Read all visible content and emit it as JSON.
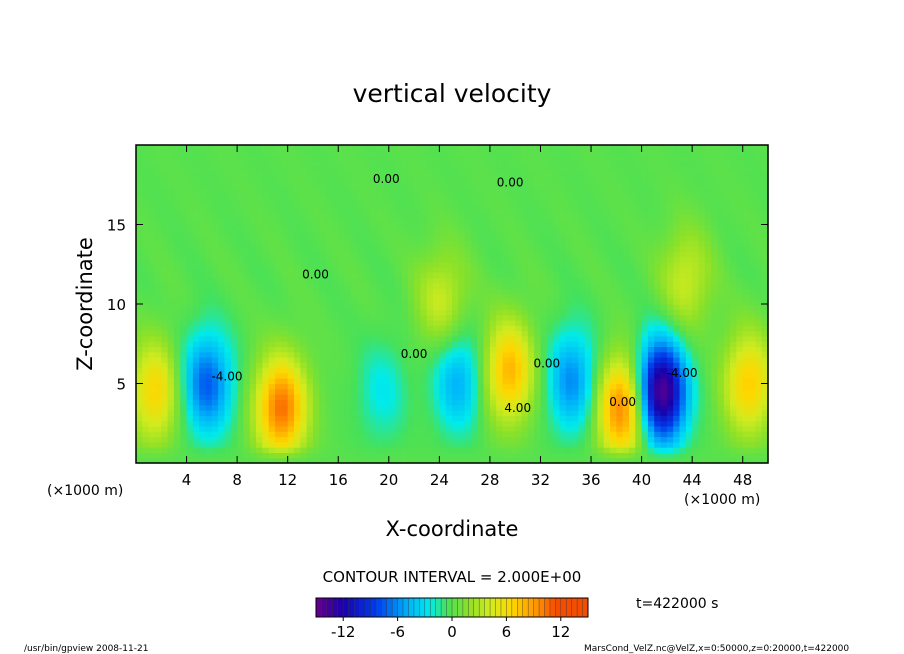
{
  "chart_data": {
    "type": "heatmap",
    "title": "vertical velocity",
    "xlabel": "X-coordinate",
    "ylabel": "Z-coordinate",
    "x_unit_left": "(×1000 m)",
    "x_unit_right": "(×1000 m)",
    "xlim": [
      0,
      50
    ],
    "ylim": [
      0,
      20
    ],
    "x_ticks": [
      4,
      8,
      12,
      16,
      20,
      24,
      28,
      32,
      36,
      40,
      44,
      48
    ],
    "y_ticks": [
      5,
      10,
      15
    ],
    "contour_interval_text": "CONTOUR INTERVAL = 2.000E+00",
    "contour_labels": [
      {
        "text": "0.00",
        "x": 14.2,
        "y": 11.6
      },
      {
        "text": "0.00",
        "x": 22.0,
        "y": 6.6
      },
      {
        "text": "0.00",
        "x": 32.5,
        "y": 6.0
      },
      {
        "text": "-4.00",
        "x": 7.2,
        "y": 5.2
      },
      {
        "text": "4.00",
        "x": 30.2,
        "y": 3.2
      },
      {
        "text": "0.00",
        "x": 38.5,
        "y": 3.6
      },
      {
        "text": "-4.00",
        "x": 43.2,
        "y": 5.4
      },
      {
        "text": "0.00",
        "x": 19.8,
        "y": 17.6
      },
      {
        "text": "0.00",
        "x": 29.6,
        "y": 17.4
      }
    ],
    "features": [
      {
        "x": 1.5,
        "z": 4.5,
        "w": 6.5
      },
      {
        "x": 5.6,
        "z": 5.0,
        "w": -7.5
      },
      {
        "x": 11.5,
        "z": 3.5,
        "w": 10.5
      },
      {
        "x": 19.5,
        "z": 4.5,
        "w": -2.5
      },
      {
        "x": 25.5,
        "z": 5.2,
        "w": -5.0
      },
      {
        "x": 29.5,
        "z": 5.8,
        "w": 8.0
      },
      {
        "x": 34.5,
        "z": 5.2,
        "w": -6.0
      },
      {
        "x": 38.5,
        "z": 3.5,
        "w": 10.5
      },
      {
        "x": 41.5,
        "z": 4.5,
        "w": -15.0
      },
      {
        "x": 48.5,
        "z": 5.0,
        "w": 7.0
      },
      {
        "x": 24.2,
        "z": 10.2,
        "w": 4.0
      },
      {
        "x": 43.5,
        "z": 11.5,
        "w": 4.0
      }
    ],
    "colorbar": {
      "ticks": [
        -12,
        -6,
        0,
        6,
        12
      ],
      "range": [
        -15,
        15
      ]
    },
    "time_label": "t=422000  s"
  },
  "footer": {
    "left": "/usr/bin/gpview   2008-11-21",
    "right": "MarsCond_VelZ.nc@VelZ,x=0:50000,z=0:20000,t=422000"
  }
}
